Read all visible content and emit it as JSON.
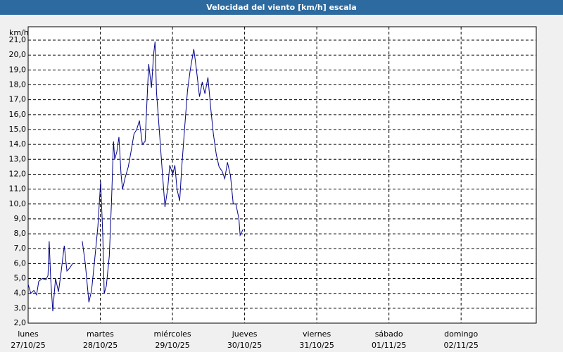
{
  "chart_data": {
    "type": "line",
    "title": "Velocidad del viento [km/h] escala",
    "y_axis_label": "km/h",
    "x": [
      0,
      0.9,
      1.9,
      2.8,
      3.5,
      4.7,
      5.9,
      6.6,
      7.0,
      7.5,
      8.2,
      9.1,
      10.1,
      11.0,
      12.0,
      12.9,
      13.8,
      14.8,
      16,
      18.0,
      19.0,
      20.2,
      21.1,
      22.0,
      23.2,
      24.1,
      24.8,
      25.3,
      26.0,
      27.0,
      27.7,
      28.4,
      28.8,
      29.5,
      30.2,
      30.9,
      31.4,
      32.3,
      33.3,
      34.2,
      35.2,
      36.1,
      37.0,
      38.0,
      38.9,
      40.1,
      41.0,
      41.7,
      42.2,
      42.7,
      43.6,
      44.5,
      45.5,
      46.4,
      47.1,
      48.1,
      48.8,
      49.5,
      50.4,
      51.1,
      52.0,
      53.0,
      53.9,
      55.1,
      56.0,
      57.0,
      57.9,
      58.8,
      59.8,
      60.7,
      61.6,
      62.6,
      63.5,
      64.5,
      65.4,
      66.3,
      67.3,
      68.2,
      69.1,
      70.1,
      70.5,
      71.5
    ],
    "series": [
      {
        "name": "Velocidad del viento",
        "color": "#00008b",
        "values": [
          4.6,
          4.0,
          4.2,
          3.9,
          4.8,
          5.0,
          4.9,
          5.2,
          7.5,
          5.0,
          2.8,
          5.0,
          4.1,
          5.5,
          7.2,
          5.5,
          5.7,
          6.0,
          null,
          7.5,
          6.0,
          3.4,
          4.2,
          6.0,
          8.5,
          11.5,
          8.0,
          4.0,
          4.5,
          6.5,
          10.0,
          14.2,
          13.0,
          13.5,
          14.5,
          12.0,
          11.0,
          11.8,
          12.5,
          13.5,
          14.7,
          15.0,
          15.6,
          14.0,
          14.2,
          19.4,
          17.8,
          20.0,
          20.9,
          17.5,
          15.0,
          12.5,
          9.8,
          11.0,
          12.6,
          12.0,
          12.6,
          11.0,
          10.2,
          12.5,
          15.0,
          17.6,
          19.0,
          20.4,
          19.0,
          17.2,
          18.2,
          17.4,
          18.5,
          16.5,
          14.7,
          13.3,
          12.5,
          12.2,
          11.7,
          12.8,
          11.9,
          10.0,
          10.0,
          9.0,
          7.9,
          8.3
        ]
      }
    ],
    "xlim": [
      0,
      169
    ],
    "xticks": [
      {
        "value": 0,
        "label": "lunes",
        "date": "27/10/25"
      },
      {
        "value": 24,
        "label": "martes",
        "date": "28/10/25"
      },
      {
        "value": 48,
        "label": "miércoles",
        "date": "29/10/25"
      },
      {
        "value": 72,
        "label": "jueves",
        "date": "30/10/25"
      },
      {
        "value": 96,
        "label": "viernes",
        "date": "31/10/25"
      },
      {
        "value": 120,
        "label": "sábado",
        "date": "01/11/25"
      },
      {
        "value": 144,
        "label": "domingo",
        "date": "02/11/25"
      }
    ],
    "ylim": [
      2,
      21.9
    ],
    "yticks": [
      {
        "value": 2,
        "label": "2,0"
      },
      {
        "value": 3,
        "label": "3,0"
      },
      {
        "value": 4,
        "label": "4,0"
      },
      {
        "value": 5,
        "label": "5,0"
      },
      {
        "value": 6,
        "label": "6,0"
      },
      {
        "value": 7,
        "label": "7,0"
      },
      {
        "value": 8,
        "label": "8,0"
      },
      {
        "value": 9,
        "label": "9,0"
      },
      {
        "value": 10,
        "label": "10,0"
      },
      {
        "value": 11,
        "label": "11,0"
      },
      {
        "value": 12,
        "label": "12,0"
      },
      {
        "value": 13,
        "label": "13,0"
      },
      {
        "value": 14,
        "label": "14,0"
      },
      {
        "value": 15,
        "label": "15,0"
      },
      {
        "value": 16,
        "label": "16,0"
      },
      {
        "value": 17,
        "label": "17,0"
      },
      {
        "value": 18,
        "label": "18,0"
      },
      {
        "value": 19,
        "label": "19,0"
      },
      {
        "value": 20,
        "label": "20,0"
      },
      {
        "value": 21,
        "label": "21,0"
      }
    ],
    "grid": true
  }
}
